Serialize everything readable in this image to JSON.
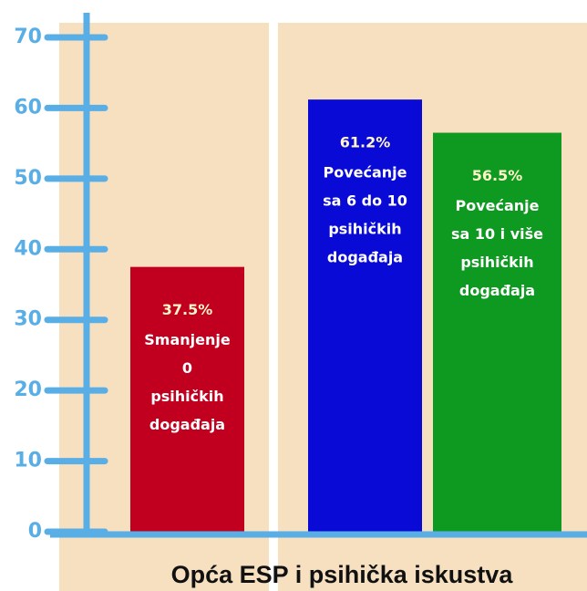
{
  "chart_data": {
    "type": "bar",
    "title": "Opća ESP i psihička iskustva",
    "categories": [
      [
        "Smanjenje",
        "0",
        "psihičkih",
        "događaja"
      ],
      [
        "Povećanje",
        "sa 6 do 10",
        "psihičkih",
        "događaja"
      ],
      [
        "Povećanje",
        "sa 10 i više",
        "psihičkih",
        "događaja"
      ]
    ],
    "values": [
      37.5,
      61.2,
      56.5
    ],
    "value_labels": [
      "37.5%",
      "61.2%",
      "56.5%"
    ],
    "colors": [
      "#c0001e",
      "#0a0ad6",
      "#0e9a20"
    ],
    "ylim": [
      0,
      70
    ],
    "yticks": [
      0,
      10,
      20,
      30,
      40,
      50,
      60,
      70
    ]
  }
}
